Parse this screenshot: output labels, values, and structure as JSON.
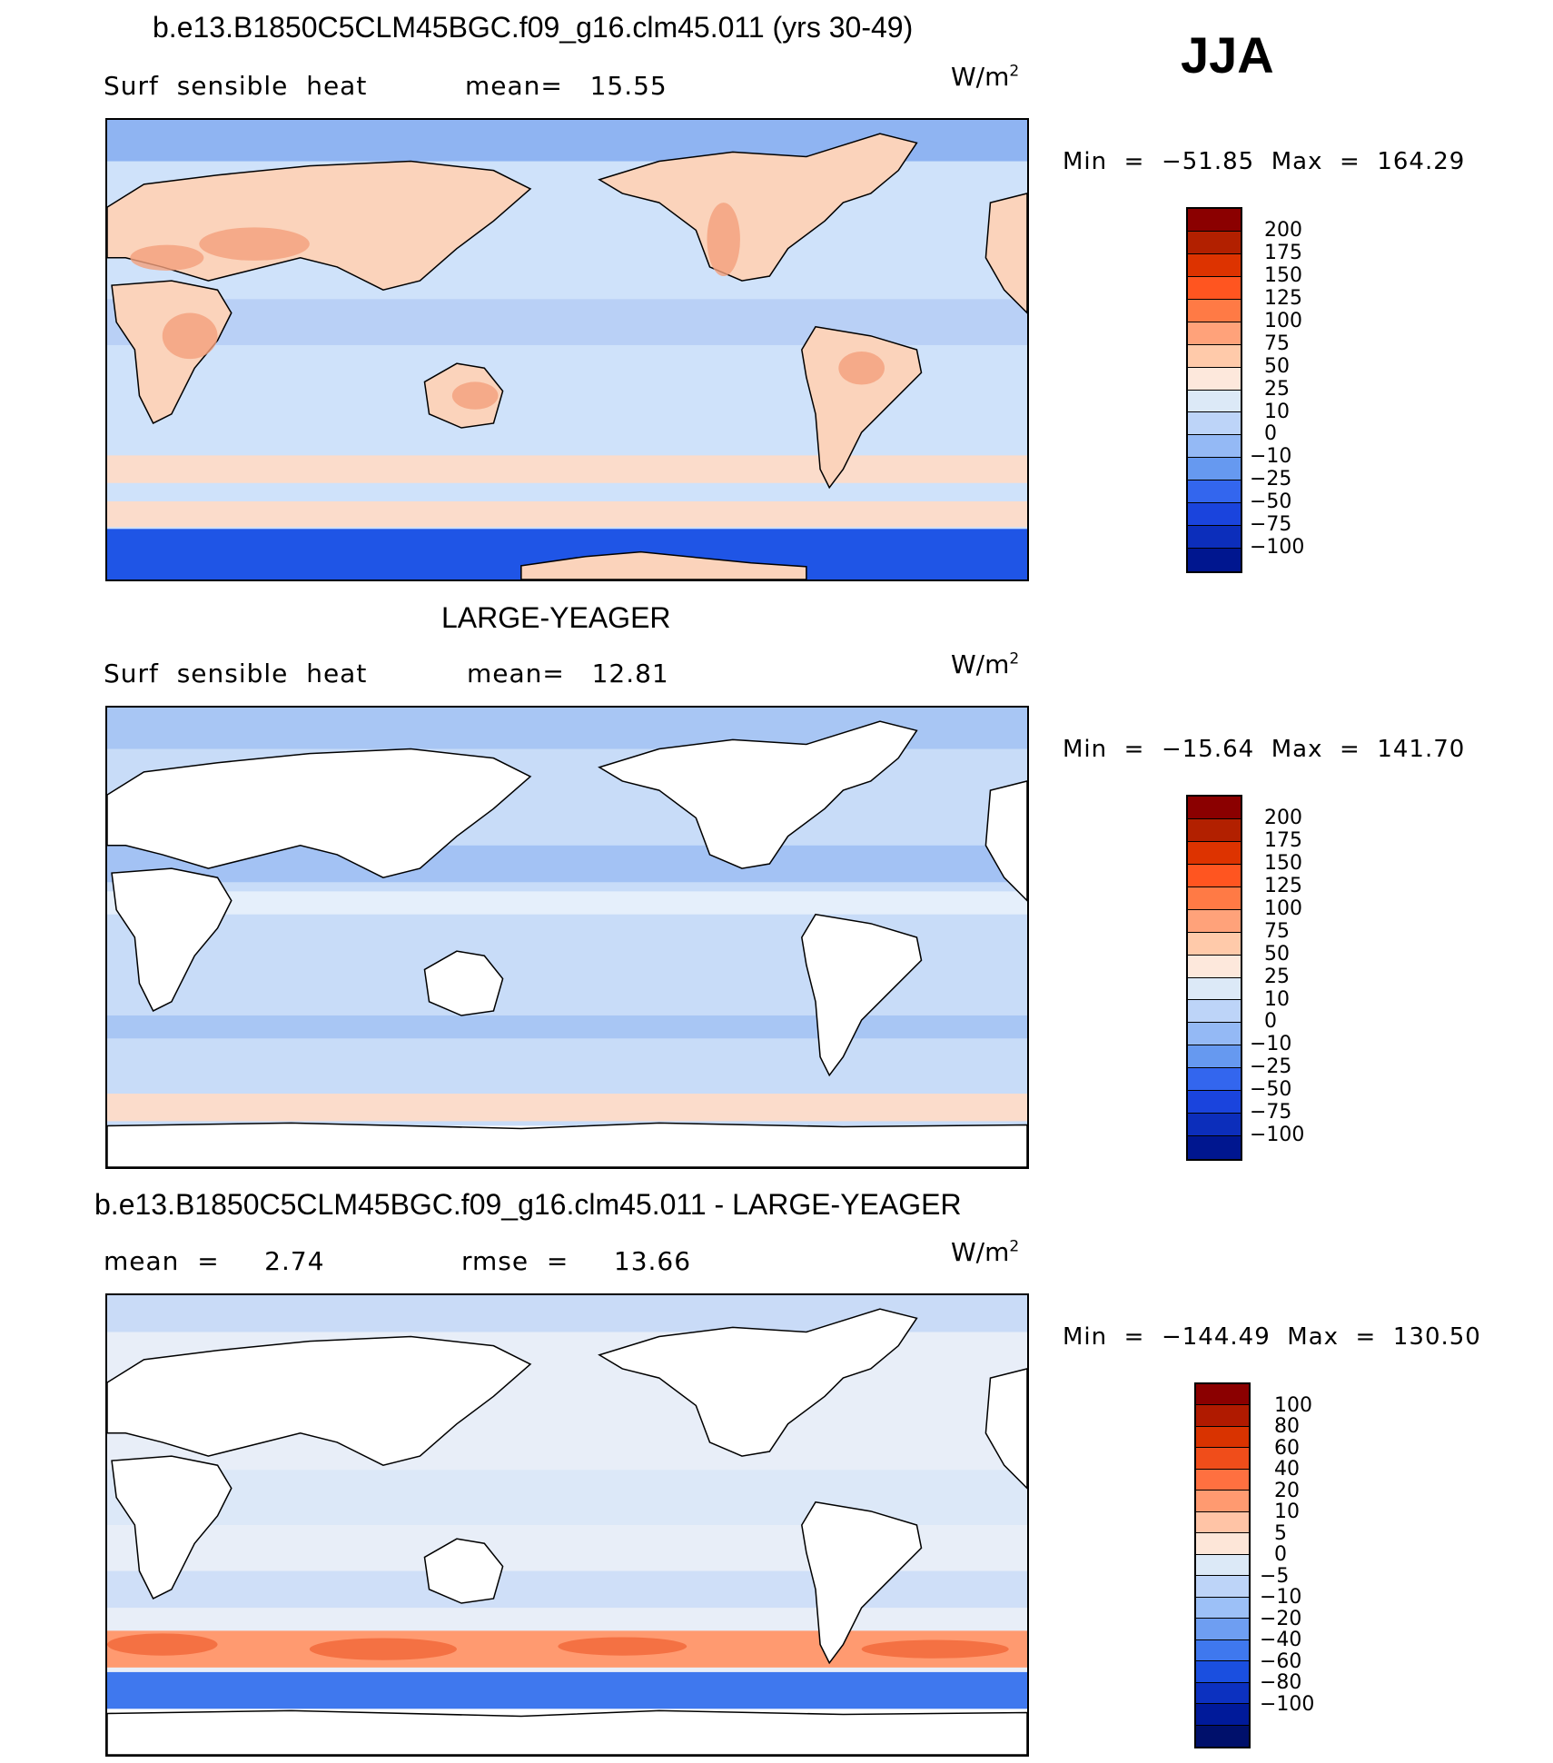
{
  "season": "JJA",
  "units_base": "W/m",
  "units_exp": "2",
  "panels": [
    {
      "title": "b.e13.B1850C5CLM45BGC.f09_g16.clm45.011 (yrs 30-49)",
      "left_label": "Surf  sensible  heat",
      "mid_label": "mean=   15.55",
      "minmax": "Min  =  −51.85  Max  =  164.29",
      "colorbar_colors": [
        "#8b0000",
        "#b22000",
        "#dd3300",
        "#ff5520",
        "#ff7a45",
        "#ffa27a",
        "#ffcaaa",
        "#fde8dc",
        "#dce9f7",
        "#bdd4f8",
        "#94b9f5",
        "#6699f0",
        "#3366ee",
        "#1a44dd",
        "#0c2ebb",
        "#00168f"
      ],
      "colorbar_labels": [
        "200",
        "175",
        "150",
        "125",
        "100",
        "75",
        "50",
        "25",
        "10",
        "0",
        "−10",
        "−25",
        "−50",
        "−75",
        "−100"
      ],
      "land_fill": "#fbd3bb",
      "ocean_fill": "#cfe2fa"
    },
    {
      "title": "LARGE-YEAGER",
      "left_label": "Surf  sensible  heat",
      "mid_label": "mean=   12.81",
      "minmax": "Min  =  −15.64  Max  =  141.70",
      "colorbar_colors": [
        "#8b0000",
        "#b22000",
        "#dd3300",
        "#ff5520",
        "#ff7a45",
        "#ffa27a",
        "#ffcaaa",
        "#fde8dc",
        "#dce9f7",
        "#bdd4f8",
        "#94b9f5",
        "#6699f0",
        "#3366ee",
        "#1a44dd",
        "#0c2ebb",
        "#00168f"
      ],
      "colorbar_labels": [
        "200",
        "175",
        "150",
        "125",
        "100",
        "75",
        "50",
        "25",
        "10",
        "0",
        "−10",
        "−25",
        "−50",
        "−75",
        "−100"
      ],
      "land_fill": "#ffffff",
      "ocean_fill": "#c8dcf8"
    },
    {
      "title": "b.e13.B1850C5CLM45BGC.f09_g16.clm45.011 - LARGE-YEAGER",
      "left_label": "mean  =     2.74",
      "mid_label": "rmse  =     13.66",
      "minmax": "Min  =  −144.49  Max  =  130.50",
      "colorbar_colors": [
        "#8b0000",
        "#b01a00",
        "#d93300",
        "#f04d1a",
        "#ff7040",
        "#ff9a70",
        "#ffc4a6",
        "#fde6d8",
        "#dce9f7",
        "#bdd4f8",
        "#9cc0f7",
        "#6e9ef2",
        "#3f78ee",
        "#1a4fe0",
        "#0c31c0",
        "#001a9a",
        "#00106b"
      ],
      "colorbar_labels": [
        "100",
        "80",
        "60",
        "40",
        "20",
        "10",
        "5",
        "0",
        "−5",
        "−10",
        "−20",
        "−40",
        "−60",
        "−80",
        "−100"
      ],
      "land_fill": "#ffffff",
      "ocean_fill": "#e8eef8"
    }
  ]
}
